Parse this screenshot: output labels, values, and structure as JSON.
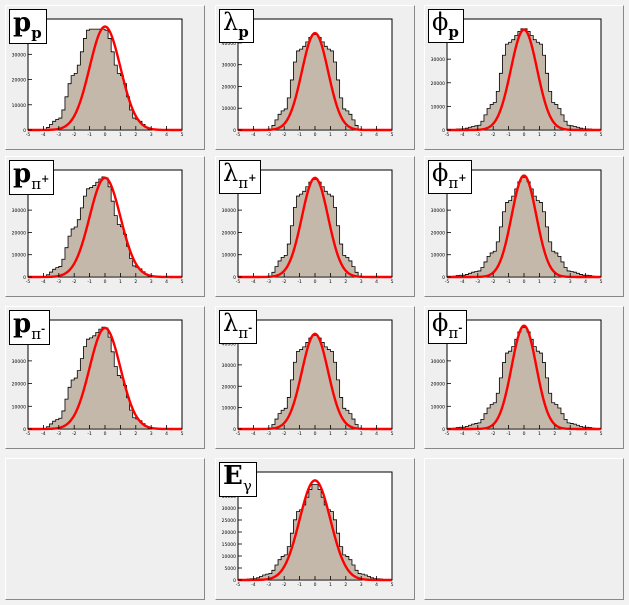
{
  "colors": {
    "histogram_fill": "#c4b8aa",
    "histogram_line": "#000000",
    "fit_line": "#ff0000",
    "pad_background": "#efefef",
    "frame_background": "#ffffff"
  },
  "chart_data": [
    {
      "type": "area",
      "label_main": "p",
      "label_sub": "p",
      "label_sup": "",
      "x": [
        -5,
        -4,
        -3,
        -2,
        -1,
        0,
        1,
        2,
        3,
        4,
        5
      ],
      "y": [
        0,
        150,
        4300,
        22000,
        40000,
        40000,
        22000,
        4300,
        150,
        0,
        0
      ],
      "xlim": [
        -5,
        5
      ],
      "ylim": [
        0,
        44000
      ],
      "y_ticks": [
        0,
        10000,
        20000,
        30000
      ],
      "x_ticks": [
        -5,
        -4,
        -3,
        -2,
        -1,
        0,
        1,
        2,
        3,
        4,
        5
      ],
      "fit_mean": 0,
      "fit_sigma": 1.0,
      "peak": 41000
    },
    {
      "type": "area",
      "label_main": "λ",
      "label_sub": "p",
      "label_sup": "",
      "x": [
        -5,
        -4,
        -3,
        -2,
        -1,
        0,
        1,
        2,
        3,
        4,
        5
      ],
      "y": [
        0,
        0,
        300,
        9000,
        37000,
        44000,
        37000,
        9000,
        300,
        0,
        0
      ],
      "xlim": [
        -5,
        5
      ],
      "ylim": [
        0,
        51000
      ],
      "y_ticks": [
        0,
        10000,
        20000,
        30000,
        40000
      ],
      "x_ticks": [
        -5,
        -4,
        -3,
        -2,
        -1,
        0,
        1,
        2,
        3,
        4,
        5
      ],
      "fit_mean": 0,
      "fit_sigma": 0.85,
      "peak": 44500
    },
    {
      "type": "area",
      "label_main": "ϕ",
      "label_sub": "p",
      "label_sup": "",
      "x": [
        -5,
        -4,
        -3,
        -2,
        -1,
        0,
        1,
        2,
        3,
        4,
        5
      ],
      "y": [
        0,
        500,
        1800,
        11000,
        37000,
        43000,
        37000,
        11000,
        1800,
        500,
        0
      ],
      "xlim": [
        -5,
        5
      ],
      "ylim": [
        0,
        47000
      ],
      "y_ticks": [
        0,
        10000,
        20000,
        30000
      ],
      "x_ticks": [
        -5,
        -4,
        -3,
        -2,
        -1,
        0,
        1,
        2,
        3,
        4,
        5
      ],
      "fit_mean": 0,
      "fit_sigma": 0.85,
      "peak": 42500
    },
    {
      "type": "area",
      "label_main": "p",
      "label_sub": "π",
      "label_sup": "+",
      "x": [
        -5,
        -4,
        -3,
        -2,
        -1,
        0,
        1,
        2,
        3,
        4,
        5
      ],
      "y": [
        0,
        150,
        4300,
        22000,
        40000,
        45000,
        23000,
        4500,
        200,
        0,
        0
      ],
      "xlim": [
        -5,
        5
      ],
      "ylim": [
        0,
        48000
      ],
      "y_ticks": [
        0,
        10000,
        20000,
        30000,
        40000
      ],
      "x_ticks": [
        -5,
        -4,
        -3,
        -2,
        -1,
        0,
        1,
        2,
        3,
        4,
        5
      ],
      "fit_mean": 0,
      "fit_sigma": 1.0,
      "peak": 44500
    },
    {
      "type": "area",
      "label_main": "λ",
      "label_sub": "π",
      "label_sup": "+",
      "x": [
        -5,
        -4,
        -3,
        -2,
        -1,
        0,
        1,
        2,
        3,
        4,
        5
      ],
      "y": [
        0,
        0,
        300,
        9000,
        37000,
        44000,
        37000,
        9000,
        300,
        0,
        0
      ],
      "xlim": [
        -5,
        5
      ],
      "ylim": [
        0,
        48000
      ],
      "y_ticks": [
        0,
        10000,
        20000,
        30000,
        40000
      ],
      "x_ticks": [
        -5,
        -4,
        -3,
        -2,
        -1,
        0,
        1,
        2,
        3,
        4,
        5
      ],
      "fit_mean": 0,
      "fit_sigma": 0.85,
      "peak": 44500
    },
    {
      "type": "area",
      "label_main": "ϕ",
      "label_sub": "π",
      "label_sup": "+",
      "x": [
        -5,
        -4,
        -3,
        -2,
        -1,
        0,
        1,
        2,
        3,
        4,
        5
      ],
      "y": [
        0,
        800,
        2500,
        11000,
        34000,
        45000,
        34000,
        11000,
        2500,
        800,
        0
      ],
      "xlim": [
        -5,
        5
      ],
      "ylim": [
        0,
        48000
      ],
      "y_ticks": [
        0,
        10000,
        20000,
        30000,
        40000
      ],
      "x_ticks": [
        -5,
        -4,
        -3,
        -2,
        -1,
        0,
        1,
        2,
        3,
        4,
        5
      ],
      "fit_mean": 0,
      "fit_sigma": 0.8,
      "peak": 45500
    },
    {
      "type": "area",
      "label_main": "p",
      "label_sub": "π",
      "label_sup": "-",
      "x": [
        -5,
        -4,
        -3,
        -2,
        -1,
        0,
        1,
        2,
        3,
        4,
        5
      ],
      "y": [
        0,
        150,
        4300,
        22000,
        40000,
        45000,
        23000,
        4500,
        200,
        0,
        0
      ],
      "xlim": [
        -5,
        5
      ],
      "ylim": [
        0,
        48000
      ],
      "y_ticks": [
        0,
        10000,
        20000,
        30000,
        40000
      ],
      "x_ticks": [
        -5,
        -4,
        -3,
        -2,
        -1,
        0,
        1,
        2,
        3,
        4,
        5
      ],
      "fit_mean": 0,
      "fit_sigma": 1.0,
      "peak": 44500
    },
    {
      "type": "area",
      "label_main": "λ",
      "label_sub": "π",
      "label_sup": "-",
      "x": [
        -5,
        -4,
        -3,
        -2,
        -1,
        0,
        1,
        2,
        3,
        4,
        5
      ],
      "y": [
        0,
        0,
        300,
        9000,
        37000,
        44000,
        37000,
        9000,
        300,
        0,
        0
      ],
      "xlim": [
        -5,
        5
      ],
      "ylim": [
        0,
        51000
      ],
      "y_ticks": [
        0,
        10000,
        20000,
        30000,
        40000
      ],
      "x_ticks": [
        -5,
        -4,
        -3,
        -2,
        -1,
        0,
        1,
        2,
        3,
        4,
        5
      ],
      "fit_mean": 0,
      "fit_sigma": 0.85,
      "peak": 44500
    },
    {
      "type": "area",
      "label_main": "ϕ",
      "label_sub": "π",
      "label_sup": "-",
      "x": [
        -5,
        -4,
        -3,
        -2,
        -1,
        0,
        1,
        2,
        3,
        4,
        5
      ],
      "y": [
        0,
        800,
        2500,
        11000,
        34000,
        45000,
        34000,
        11000,
        2500,
        800,
        0
      ],
      "xlim": [
        -5,
        5
      ],
      "ylim": [
        0,
        48000
      ],
      "y_ticks": [
        0,
        10000,
        20000,
        30000,
        40000
      ],
      "x_ticks": [
        -5,
        -4,
        -3,
        -2,
        -1,
        0,
        1,
        2,
        3,
        4,
        5
      ],
      "fit_mean": 0,
      "fit_sigma": 0.8,
      "peak": 45500
    },
    {
      "type": "area",
      "label_main": "E",
      "label_sub": "γ",
      "label_sup": "",
      "x": [
        -5,
        -4,
        -3,
        -2,
        -1,
        0,
        1,
        2,
        3,
        4,
        5
      ],
      "y": [
        0,
        500,
        2500,
        10000,
        29000,
        40000,
        29000,
        10000,
        2500,
        500,
        0
      ],
      "xlim": [
        -5,
        5
      ],
      "ylim": [
        0,
        45000
      ],
      "y_ticks": [
        0,
        5000,
        10000,
        15000,
        20000,
        25000,
        30000,
        35000,
        40000
      ],
      "x_ticks": [
        -5,
        -4,
        -3,
        -2,
        -1,
        0,
        1,
        2,
        3,
        4,
        5
      ],
      "fit_mean": 0,
      "fit_sigma": 1.0,
      "peak": 41500
    }
  ]
}
